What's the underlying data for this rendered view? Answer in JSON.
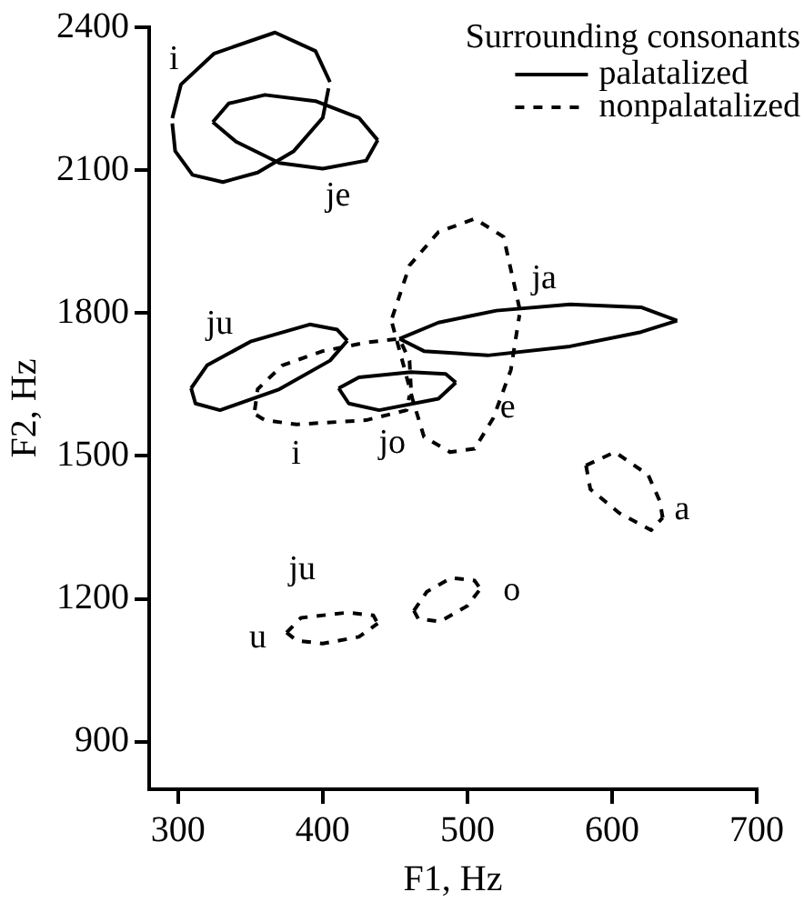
{
  "chart_data": {
    "type": "line",
    "xlabel": "F1, Hz",
    "ylabel": "F2, Hz",
    "legend_title": "Surrounding consonants",
    "legend": "top right",
    "xlim": [
      280,
      700
    ],
    "xticks": [
      300,
      400,
      500,
      600,
      700
    ],
    "ylim": [
      800,
      2400
    ],
    "yticks": [
      900,
      1200,
      1500,
      1800,
      2100,
      2400
    ],
    "series": [
      {
        "name": "palatalized",
        "color": "#000000",
        "line_style": "solid",
        "x": [
          296,
          302,
          325,
          367,
          395,
          405
        ],
        "values": [
          2209,
          2280,
          2345,
          2389,
          2350,
          2285
        ]
      },
      {
        "color": "#000000",
        "line_style": "solid",
        "x": [
          296,
          298,
          310,
          331,
          355,
          380,
          400,
          404
        ],
        "values": [
          2198,
          2140,
          2090,
          2075,
          2095,
          2140,
          2210,
          2272
        ]
      },
      {
        "color": "#000000",
        "line_style": "solid",
        "x": [
          324,
          335,
          360,
          395,
          425,
          438
        ],
        "values": [
          2201,
          2240,
          2258,
          2245,
          2210,
          2163
        ]
      },
      {
        "color": "#000000",
        "line_style": "solid",
        "x": [
          324,
          340,
          370,
          400,
          430,
          438
        ],
        "values": [
          2201,
          2160,
          2115,
          2103,
          2120,
          2163
        ]
      },
      {
        "color": "#000000",
        "line_style": "solid",
        "x": [
          309,
          320,
          350,
          391,
          410,
          417
        ],
        "values": [
          1642,
          1690,
          1740,
          1776,
          1765,
          1742
        ]
      },
      {
        "color": "#000000",
        "line_style": "solid",
        "x": [
          309,
          312,
          329,
          370,
          405,
          417
        ],
        "values": [
          1642,
          1610,
          1596,
          1640,
          1700,
          1742
        ]
      },
      {
        "color": "#000000",
        "line_style": "solid",
        "x": [
          453,
          480,
          520,
          571,
          620,
          645
        ],
        "values": [
          1746,
          1780,
          1805,
          1818,
          1812,
          1784
        ]
      },
      {
        "color": "#000000",
        "line_style": "solid",
        "x": [
          453,
          470,
          514,
          571,
          620,
          645
        ],
        "values": [
          1746,
          1720,
          1711,
          1730,
          1760,
          1784
        ]
      },
      {
        "color": "#000000",
        "line_style": "solid",
        "x": [
          411,
          425,
          461,
          485,
          492
        ],
        "values": [
          1642,
          1665,
          1676,
          1672,
          1654
        ]
      },
      {
        "color": "#000000",
        "line_style": "solid",
        "x": [
          411,
          418,
          439,
          480,
          492
        ],
        "values": [
          1642,
          1610,
          1596,
          1620,
          1654
        ]
      },
      {
        "name": "nonpalatalized",
        "color": "#000000",
        "line_style": "dashed",
        "x": [
          448,
          460,
          480,
          505,
          525,
          536
        ],
        "values": [
          1790,
          1900,
          1970,
          1998,
          1960,
          1810
        ]
      },
      {
        "color": "#000000",
        "line_style": "dashed",
        "x": [
          448,
          455,
          462,
          470,
          488,
          505,
          518,
          530,
          536
        ],
        "values": [
          1778,
          1700,
          1620,
          1540,
          1508,
          1515,
          1580,
          1680,
          1796
        ]
      },
      {
        "color": "#000000",
        "line_style": "dashed",
        "x": [
          353,
          355,
          372,
          400,
          430,
          453,
          460,
          461
        ],
        "values": [
          1596,
          1640,
          1690,
          1720,
          1738,
          1746,
          1700,
          1640
        ]
      },
      {
        "color": "#000000",
        "line_style": "dashed",
        "x": [
          354,
          360,
          382,
          430,
          458,
          460
        ],
        "values": [
          1586,
          1575,
          1566,
          1575,
          1596,
          1627
        ]
      },
      {
        "color": "#000000",
        "line_style": "dashed",
        "x": [
          582,
          602,
          625,
          633,
          635
        ],
        "values": [
          1480,
          1508,
          1460,
          1405,
          1370
        ]
      },
      {
        "color": "#000000",
        "line_style": "dashed",
        "x": [
          582,
          585,
          605,
          627,
          635
        ],
        "values": [
          1480,
          1430,
          1380,
          1344,
          1370
        ]
      },
      {
        "color": "#000000",
        "line_style": "dashed",
        "x": [
          463,
          472,
          489,
          505,
          509
        ],
        "values": [
          1175,
          1215,
          1244,
          1238,
          1221
        ]
      },
      {
        "color": "#000000",
        "line_style": "dashed",
        "x": [
          463,
          466,
          481,
          500,
          509
        ],
        "values": [
          1175,
          1158,
          1152,
          1185,
          1221
        ]
      },
      {
        "color": "#000000",
        "line_style": "dashed",
        "x": [
          375,
          385,
          417,
          435,
          438
        ],
        "values": [
          1129,
          1160,
          1171,
          1165,
          1148
        ]
      },
      {
        "color": "#000000",
        "line_style": "dashed",
        "x": [
          375,
          382,
          400,
          425,
          438
        ],
        "values": [
          1129,
          1112,
          1106,
          1120,
          1148
        ]
      }
    ],
    "annotations": [
      "i",
      "je",
      "ja",
      "ju",
      "e",
      "jo",
      "i",
      "a",
      "ju",
      "o",
      "u"
    ]
  }
}
